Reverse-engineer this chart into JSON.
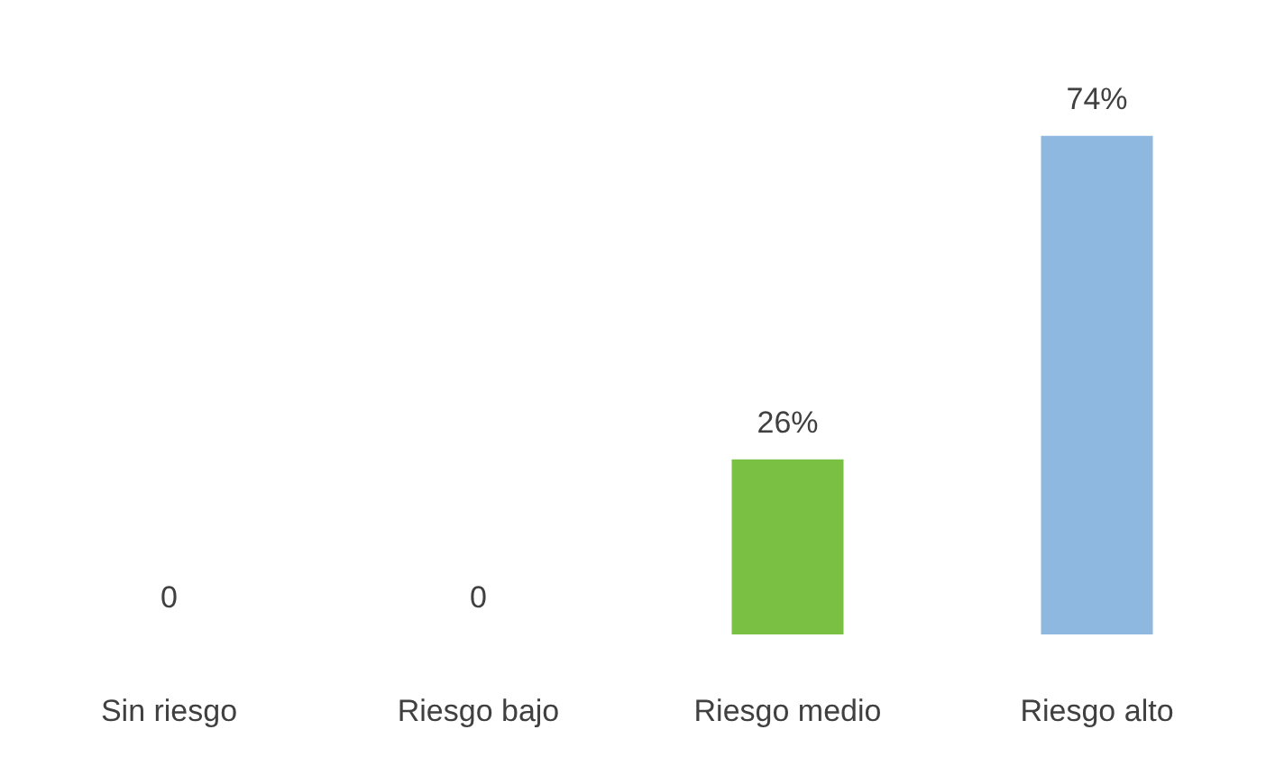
{
  "chart_data": {
    "type": "bar",
    "categories": [
      "Sin riesgo",
      "Riesgo bajo",
      "Riesgo medio",
      "Riesgo alto"
    ],
    "values": [
      0,
      0,
      26,
      74
    ],
    "colors": [
      "#0b1f4d",
      "#c0622a",
      "#7ac143",
      "#8fb8e0"
    ],
    "value_labels": [
      "0",
      "0",
      "26%",
      "74%"
    ],
    "tick_labels": "x"
  }
}
